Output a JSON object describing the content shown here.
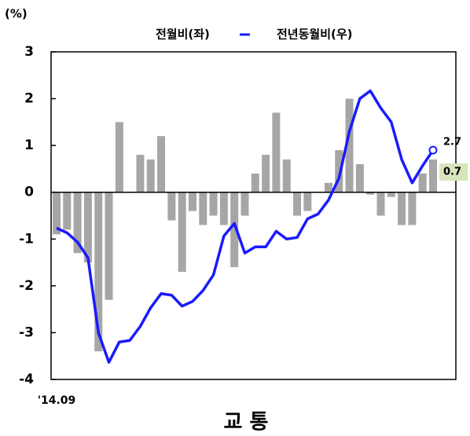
{
  "chart_data": {
    "type": "bar_line",
    "unit_label": "(%)",
    "title": "교          통",
    "categories": [
      "'14.09",
      null,
      null,
      null,
      null,
      null,
      null,
      null,
      null,
      null,
      null,
      null,
      null,
      null,
      null,
      null,
      null,
      null,
      null,
      null,
      null,
      null,
      null,
      null,
      null,
      null,
      null,
      null,
      null,
      null,
      null,
      null,
      null,
      null,
      null,
      null,
      null
    ],
    "series": [
      {
        "name": "전월비(좌)",
        "color": "#a6a6a6",
        "type": "bar",
        "values": [
          -0.9,
          -0.8,
          -1.3,
          -1.5,
          -3.4,
          -2.3,
          1.5,
          0,
          0.8,
          0.7,
          1.2,
          -0.6,
          -1.7,
          -0.4,
          -0.7,
          -0.5,
          -0.7,
          -1.6,
          -0.5,
          0.4,
          0.8,
          1.7,
          0.7,
          -0.5,
          -0.4,
          0,
          0.2,
          0.9,
          2.0,
          0.6,
          -0.05,
          -0.5,
          -0.1,
          -0.7,
          -0.7,
          0.4,
          0.7
        ]
      },
      {
        "name": "전년동월비(우)",
        "color": "#1a1aff",
        "type": "line",
        "axis": "y2",
        "values": [
          -2.3,
          -2.6,
          -3.2,
          -4.2,
          -9.0,
          -10.9,
          -9.6,
          -9.5,
          -8.6,
          -7.4,
          -6.5,
          -6.6,
          -7.3,
          -7.0,
          -6.3,
          -5.3,
          -2.8,
          -2.0,
          -3.9,
          -3.5,
          -3.5,
          -2.5,
          -3.0,
          -2.9,
          -1.7,
          -1.4,
          -0.5,
          0.9,
          3.9,
          6.0,
          6.5,
          5.4,
          4.5,
          2.1,
          0.6,
          1.7,
          2.7
        ]
      }
    ],
    "ylim": [
      -4,
      3
    ],
    "yticks": [
      -4,
      -3,
      -2,
      -1,
      0,
      1,
      2,
      3
    ],
    "y2lim": [
      -12,
      9
    ]
  }
}
